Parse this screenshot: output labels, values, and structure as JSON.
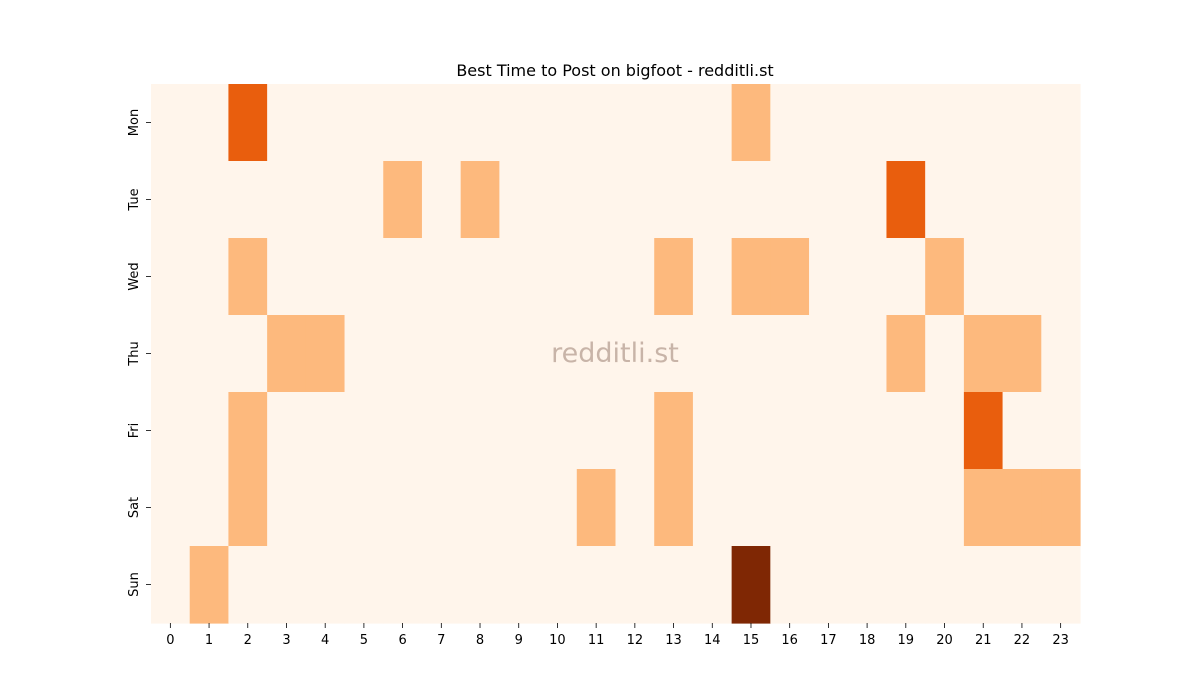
{
  "chart_data": {
    "type": "heatmap",
    "title": "Best Time to Post on bigfoot - redditli.st",
    "watermark": "redditli.st",
    "x_categories": [
      "0",
      "1",
      "2",
      "3",
      "4",
      "5",
      "6",
      "7",
      "8",
      "9",
      "10",
      "11",
      "12",
      "13",
      "14",
      "15",
      "16",
      "17",
      "18",
      "19",
      "20",
      "21",
      "22",
      "23"
    ],
    "y_categories": [
      "Mon",
      "Tue",
      "Wed",
      "Thu",
      "Fri",
      "Sat",
      "Sun"
    ],
    "values": [
      [
        0,
        0,
        2,
        0,
        0,
        0,
        0,
        0,
        0,
        0,
        0,
        0,
        0,
        0,
        0,
        1,
        0,
        0,
        0,
        0,
        0,
        0,
        0,
        0
      ],
      [
        0,
        0,
        0,
        0,
        0,
        0,
        1,
        0,
        1,
        0,
        0,
        0,
        0,
        0,
        0,
        0,
        0,
        0,
        0,
        2,
        0,
        0,
        0,
        0
      ],
      [
        0,
        0,
        1,
        0,
        0,
        0,
        0,
        0,
        0,
        0,
        0,
        0,
        0,
        1,
        0,
        1,
        1,
        0,
        0,
        0,
        1,
        0,
        0,
        0
      ],
      [
        0,
        0,
        0,
        1,
        1,
        0,
        0,
        0,
        0,
        0,
        0,
        0,
        0,
        0,
        0,
        0,
        0,
        0,
        0,
        1,
        0,
        1,
        1,
        0
      ],
      [
        0,
        0,
        1,
        0,
        0,
        0,
        0,
        0,
        0,
        0,
        0,
        0,
        0,
        1,
        0,
        0,
        0,
        0,
        0,
        0,
        0,
        2,
        0,
        0
      ],
      [
        0,
        0,
        1,
        0,
        0,
        0,
        0,
        0,
        0,
        0,
        0,
        1,
        0,
        1,
        0,
        0,
        0,
        0,
        0,
        0,
        0,
        1,
        1,
        1
      ],
      [
        0,
        1,
        0,
        0,
        0,
        0,
        0,
        0,
        0,
        0,
        0,
        0,
        0,
        0,
        0,
        3,
        0,
        0,
        0,
        0,
        0,
        0,
        0,
        0
      ]
    ],
    "value_range": [
      0,
      3
    ],
    "colorscale": [
      "#fff5eb",
      "#fdb97d",
      "#e95e0d",
      "#7f2704"
    ],
    "colorbar": false,
    "grid": false
  }
}
